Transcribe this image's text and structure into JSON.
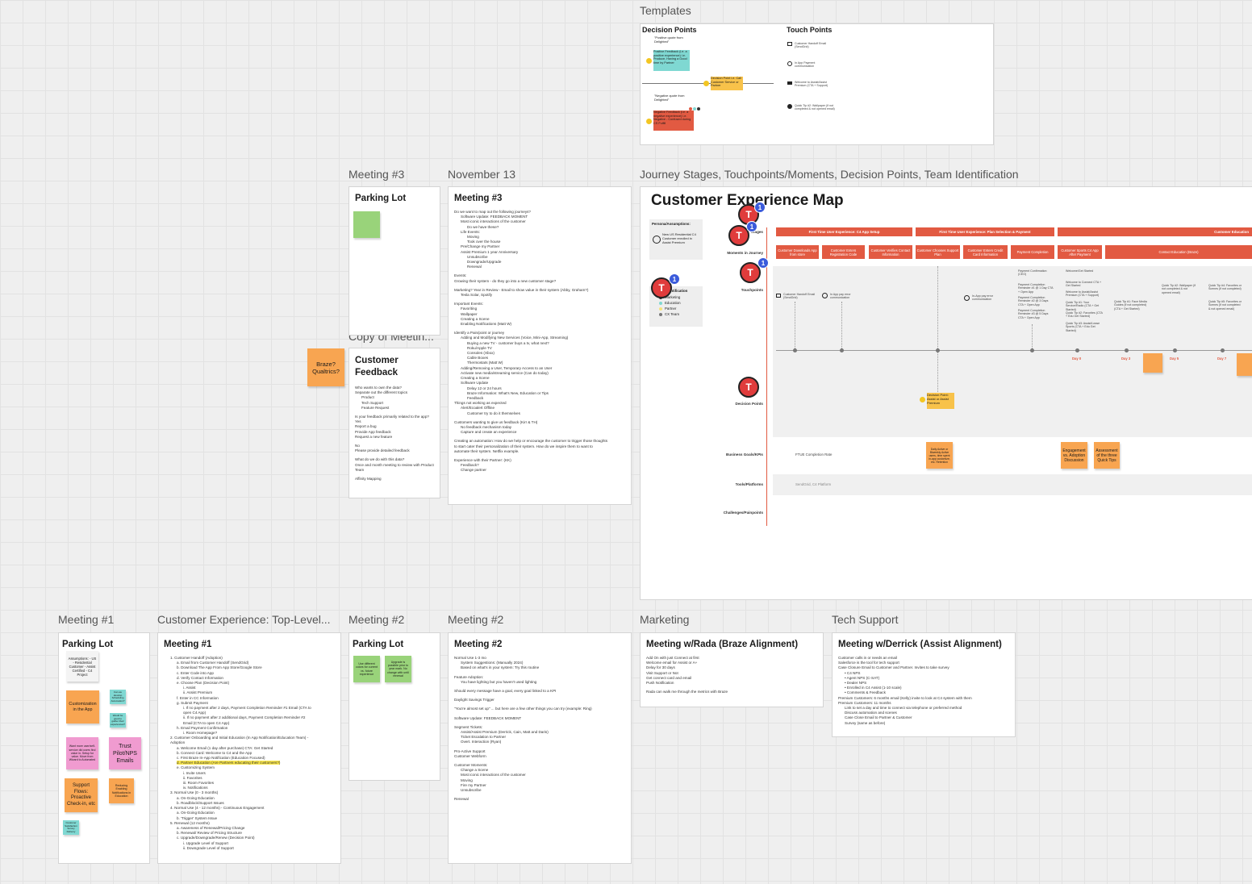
{
  "titles": {
    "templates": "Templates",
    "meeting3_parking": "Meeting #3",
    "november13": "November 13",
    "journey": "Journey Stages, Touchpoints/Moments, Decision Points, Team Identification",
    "copy_meeting": "Copy of Meetin...",
    "meeting1": "Meeting #1",
    "cx_top": "Customer Experience: Top-Level...",
    "meeting2_parking": "Meeting #2",
    "meeting2": "Meeting #2",
    "marketing": "Marketing",
    "tech_support": "Tech Support"
  },
  "templates": {
    "decision_points": "Decision Points",
    "touch_points": "Touch Points",
    "positive_quote": "\"Positive quote from Delighted\"",
    "positive_note": "Positive Feedback (i.e. a positive experience) i.e. Produce, Having a Good time by Partner",
    "decision_point": "Decision Point i.e. Call Customer Service or Partner",
    "negative_quote": "\"Negative quote from Delighted\"",
    "negative_note": "Negative Feedback (i.e. a negative experience) i.e. Negative - Confused during CS Fulfill",
    "tp1": "Customer Handoff Email (SendGrid)",
    "tp2": "In App Payment communication",
    "tp3": "Welcome to Assist/Assist Premium (CTA + Support)",
    "tp4": "Quick Tip #2: Wallpaper (if not completed & not opened email)"
  },
  "parking3": {
    "heading": "Parking Lot"
  },
  "meeting3": {
    "heading": "Meeting #3",
    "lines": [
      [
        "0",
        "Do we want to map out the following journeys?"
      ],
      [
        "1",
        "Software Update: FEEDBACK MOMENT"
      ],
      [
        "1",
        "Most iconic interactions of the customer"
      ],
      [
        "2",
        "Do we have these?"
      ],
      [
        "1",
        "Life Events:"
      ],
      [
        "2",
        "Moving"
      ],
      [
        "2",
        "Took over the house"
      ],
      [
        "1",
        "Pre/Change my Partner"
      ],
      [
        "1",
        "Assist Premium 1 year Anniversary"
      ],
      [
        "2",
        "Unsubscribe"
      ],
      [
        "2",
        "Downgrade/Upgrade"
      ],
      [
        "2",
        "Renewal"
      ],
      [
        "gap",
        ""
      ],
      [
        "0",
        "Events:"
      ],
      [
        "0",
        "Growing their system - do they go into a new customer stage?"
      ],
      [
        "gap",
        ""
      ],
      [
        "0",
        "Marketing? Year in Review - Email to show value in their system (Abby, Graham?)"
      ],
      [
        "1",
        "Tesla Solar, Spotify"
      ],
      [
        "gap",
        ""
      ],
      [
        "0",
        "Important Events:"
      ],
      [
        "1",
        "Favoriting"
      ],
      [
        "1",
        "Wallpaper"
      ],
      [
        "1",
        "Creating a Scene"
      ],
      [
        "1",
        "Enabling Notifications (Matt W)"
      ],
      [
        "gap",
        ""
      ],
      [
        "0",
        "Identify a Pain/point or journey"
      ],
      [
        "1",
        "Adding and Modifying New Services (Voice, Mini-App, Streaming)"
      ],
      [
        "2",
        "Buying a new TV - customer buys a tv, what next?"
      ],
      [
        "2",
        "Roku/Apple TV"
      ],
      [
        "2",
        "Consoles (Xbox)"
      ],
      [
        "2",
        "Cable Boxes"
      ],
      [
        "2",
        "Thermostats (Matt W)"
      ],
      [
        "1",
        "Adding/Removing a User, Temporary Access to an User"
      ],
      [
        "1",
        "Activate new media/streaming service (Can do today)"
      ],
      [
        "1",
        "Creating a Scene"
      ],
      [
        "1",
        "Software Update"
      ],
      [
        "2",
        "Delay 12 or 24 hours"
      ],
      [
        "2",
        "Braze Information: What's New, Education or Tips"
      ],
      [
        "2",
        "Feedback"
      ],
      [
        "0",
        "Things not working as expected"
      ],
      [
        "1",
        "Alert/Ecoalert Offline"
      ],
      [
        "2",
        "Customer try to do it themselves"
      ],
      [
        "gap",
        ""
      ],
      [
        "0",
        "Customers wanting to give us feedback (Kirr & TH)"
      ],
      [
        "1",
        "No feedback mechanism today"
      ],
      [
        "1",
        "Capture and create an experience"
      ],
      [
        "gap",
        ""
      ],
      [
        "0",
        "Creating an automation: How do we help or encourage the customer to trigger those thoughts"
      ],
      [
        "0",
        "to start cater their personalization of their system. How do we inspire them to want to"
      ],
      [
        "0",
        "automate their system. Netflix example."
      ],
      [
        "gap",
        ""
      ],
      [
        "0",
        "Experience with their Partner: (KK)"
      ],
      [
        "1",
        "Feedback?"
      ],
      [
        "1",
        "Change partner"
      ]
    ]
  },
  "copy_feedback": {
    "heading": "Customer Feedback",
    "lines": [
      [
        "0",
        "Who wants to own the data?"
      ],
      [
        "0",
        "Separate out the different topics"
      ],
      [
        "1",
        "Product"
      ],
      [
        "1",
        "Tech Support"
      ],
      [
        "1",
        "Feature Request"
      ],
      [
        "gap",
        ""
      ],
      [
        "0",
        "Is your feedback primarily related to the app?"
      ],
      [
        "0",
        "Yes"
      ],
      [
        "0",
        "Report a bug"
      ],
      [
        "0",
        "Provide App feedback"
      ],
      [
        "0",
        "Request a new feature"
      ],
      [
        "gap",
        ""
      ],
      [
        "0",
        "No"
      ],
      [
        "0",
        "Please provide detailed feedback"
      ],
      [
        "gap",
        ""
      ],
      [
        "0",
        "What do we do with this data?"
      ],
      [
        "0",
        "Once and month meeting to review with Product"
      ],
      [
        "0",
        "Team"
      ],
      [
        "gap",
        ""
      ],
      [
        "0",
        "Affinity Mapping"
      ]
    ]
  },
  "braze_sticky": "Braze? Qualtrics?",
  "cem": {
    "title": "Customer Experience Map",
    "persona_label": "Persona/Assumptions:",
    "persona_text": "New US Residential C4 Customer enrolled in Assist Premium",
    "team_label": "Identification",
    "team": [
      "Marketing",
      "Education",
      "Partner",
      "CX Team"
    ],
    "team_colors": [
      "#333333",
      "#7fd8d2",
      "#f5e27a",
      "#777777"
    ],
    "rows": [
      "Stages",
      "Moments in Journey",
      "Touchpoints",
      "Decision Points",
      "Business Goals/KPIs",
      "Tools/Platforms",
      "Challenges/Painpoints"
    ],
    "stages": [
      "First Time User Experience: C4 App Setup",
      "First Time User Experience: Plan Selection & Payment",
      "Customer Education"
    ],
    "moments": [
      "Customer Downloads App from store",
      "Customer Enters Registration Code",
      "Customer Verifies Contact Information",
      "Customer Chooses Support Plan",
      "Customer Enters Credit Card Information",
      "Payment Completion",
      "Customer Sports C4 App After Payment",
      "Contact Education (Braze)"
    ],
    "touch1": "Customer Handoff Email (SendGrid)",
    "touch2": "In App pay error communication",
    "touch3": "In-App pay error communication",
    "touch_payment": [
      "Payment Confirmation (CEO)",
      "Payment Completion Reminder #1 @ 1 Day CTA + Open App",
      "Payment Completion Reminder #2 @ 3 Days CTA + Open App",
      "Payment Completion Reminder #3 @ 5 Days CTA + Open App"
    ],
    "touch_edu": [
      "Welcome/Get Started",
      "Welcome to Connect CTA + Get Started",
      "Welcome to Assist/Assist Premium (CTA + Support)",
      "Quick Tip #1: Your Service/Radio (CTA + Get Started)",
      "Quick Tip #2: Favorites (CTA + Edu Get Started)",
      "Quick Tip #3: Assist/Lease Sports (CTA + Edu Get Started)"
    ],
    "touch_more": [
      "Quick Tip #1: Face Media Guides (if not completed) (CTA + Get Started)",
      "Quick Tip #2: Wallpaper (if not completed & not opened email)",
      "Quick Tip #4: Favorites or Scenes (if not completed)",
      "Quick Tip #5: Favorites or Scenes (if not completed & not opened email)"
    ],
    "days": [
      "Day 0",
      "Day 3",
      "Day 5",
      "Day 7"
    ],
    "decision_note": "Decision Point: Assist or Assist Premium",
    "kpi1": "FTUE Completion Rate",
    "kpi_sticky1": "Daily Active or Biweekly Active users, time spent in-app customize, etc. Retention",
    "kpi_sticky2": "Engagement vs. Adoption Discussion",
    "kpi_sticky3": "Assessment of the three Quick Tips",
    "tools": "SendGrid, C4 Platform",
    "avatar_letter": "T",
    "badge_count": "1"
  },
  "parking1": {
    "heading": "Parking Lot",
    "assumptions": "Assumptions: - US - Residential Customer - Assist Certified - C4 Project",
    "stickies": [
      "Customization in the App",
      "Can we develop Scheduling Automation?",
      "Would be good to gather their experiences?",
      "Want more user/self-service did users find value in. Setup for value. Move from Wizard to Automated",
      "Trust Pilot/NPS Emails",
      "Support Flows: Proactive Check-in, etc",
      "Reducing Enabling Notifications in Education",
      "Customer Satisfaction Survey Delivery"
    ]
  },
  "meeting1": {
    "heading": "Meeting #1",
    "lines": [
      [
        "1",
        "1. Customer Handoff (Adoption)"
      ],
      [
        "2",
        "a. Email from Customer Handoff (SendGrid)"
      ],
      [
        "2",
        "b. Download The App From App Store/Google Store"
      ],
      [
        "2",
        "c. Enter Code into App"
      ],
      [
        "2",
        "d. Verify Contact Information"
      ],
      [
        "2",
        "e. Choose Plan (Decision Point)"
      ],
      [
        "3",
        "i. Assist"
      ],
      [
        "3",
        "ii. Assist Premium"
      ],
      [
        "2",
        "f. Enter in CC Information"
      ],
      [
        "2",
        "g. Submit Payment"
      ],
      [
        "3",
        "i. If no payment after 2 days, Payment Completion Reminder #1 Email (CTA to"
      ],
      [
        "3",
        "   open C4 App)"
      ],
      [
        "3",
        "ii. If no payment after 2 additional days, Payment Completion Reminder #2"
      ],
      [
        "3",
        "   Email (CTA to open C4 App)"
      ],
      [
        "2",
        "h. Email Payment Confirmation"
      ],
      [
        "3",
        "i. Room Homepage?"
      ],
      [
        "1",
        "2. Customer Onboarding and Initial Education (In App Notification/Education Team) -"
      ],
      [
        "1",
        "   Adoption"
      ],
      [
        "2",
        "a. Welcome Email (1 day after purchase) CTA: Get Started"
      ],
      [
        "2",
        "b. Connect Card: Welcome to C4 and the App"
      ],
      [
        "2",
        "c. First Braze In-App Notification (Education Focused)"
      ],
      [
        "2",
        "HL|d. Partner Education (Are Partners educating their customers?)"
      ],
      [
        "2",
        "e. Customizing System"
      ],
      [
        "3",
        "i. Invite Users"
      ],
      [
        "3",
        "ii. Favorites"
      ],
      [
        "3",
        "iii. Room Favorites"
      ],
      [
        "3",
        "iv. Notifications"
      ],
      [
        "1",
        "3. Normal Use (0 - 3 months)"
      ],
      [
        "2",
        "a. On-Going Education"
      ],
      [
        "2",
        "b. Roadblock/Support Issues"
      ],
      [
        "1",
        "4. Normal Use (4 - 12 months) - Continuous Engagement"
      ],
      [
        "2",
        "a. On-Going Education"
      ],
      [
        "2",
        "b. 'Trigger' System Issue"
      ],
      [
        "1",
        "5. Renewal (12 months)"
      ],
      [
        "2",
        "a. Awareness of Renewal/Pricing Change"
      ],
      [
        "2",
        "b. Renewal/ Review of Pricing Structure"
      ],
      [
        "2",
        "c. Upgrade/Downgrade/Renew (Decision Point)"
      ],
      [
        "3",
        "i. Upgrade Level of Support"
      ],
      [
        "3",
        "ii. Downgrade Level of Support"
      ]
    ]
  },
  "parking2": {
    "heading": "Parking Lot",
    "stickies": [
      "Use different colors for current vs. future experience",
      "Upgrade is possible prior to year mark. No change with until renewal"
    ]
  },
  "meeting2": {
    "heading": "Meeting #2",
    "lines": [
      [
        "0",
        "Normal Use 1-3 mo"
      ],
      [
        "1",
        "System Suggestions: (Manually 2024)"
      ],
      [
        "1",
        "Based on what's in your system: Try this routine"
      ],
      [
        "gap",
        ""
      ],
      [
        "0",
        "Feature Adoption:"
      ],
      [
        "1",
        "You have lighting but you haven't used lighting"
      ],
      [
        "gap",
        ""
      ],
      [
        "0",
        "Should every message have a goal, every goal linked to a KPI"
      ],
      [
        "gap",
        ""
      ],
      [
        "0",
        "Daylight Savings Trigger"
      ],
      [
        "gap",
        ""
      ],
      [
        "0",
        "\"You're almost set up\" ... but here are a few other things you can try (example: Ring)"
      ],
      [
        "gap",
        ""
      ],
      [
        "0",
        "Software Update: FEEDBACK MOMENT"
      ],
      [
        "gap",
        ""
      ],
      [
        "0",
        "Segment Tickets:"
      ],
      [
        "1",
        "Assist/Assist Premium (Derrick, Cain, Matt and Daris)"
      ],
      [
        "1",
        "Ticket Escalation to Partner"
      ],
      [
        "1",
        "Overt. Interaction (Ryan)"
      ],
      [
        "gap",
        ""
      ],
      [
        "0",
        "Pro-Active Support"
      ],
      [
        "0",
        "Customer Webform"
      ],
      [
        "gap",
        ""
      ],
      [
        "0",
        "Customer Moments:"
      ],
      [
        "1",
        "Change a Scene"
      ],
      [
        "1",
        "Most iconic interactions of the customer"
      ],
      [
        "1",
        "Moving"
      ],
      [
        "1",
        "Fire my Partner"
      ],
      [
        "1",
        "Unsubscribe"
      ],
      [
        "gap",
        ""
      ],
      [
        "0",
        "Renewal"
      ]
    ]
  },
  "marketing": {
    "heading": "Meeting w/Rada (Braze Alignment)",
    "lines": [
      [
        "0",
        "Add On with just Connect at first"
      ],
      [
        "0",
        "Welcome email for Assist or A+"
      ],
      [
        "0",
        "Delay for 30 days"
      ],
      [
        "0",
        "Visit Support or Not"
      ],
      [
        "0",
        "Get connect card and email"
      ],
      [
        "0",
        "Push Notification"
      ],
      [
        "gap",
        ""
      ],
      [
        "0",
        "Rada can walk me through the metrics with Braze"
      ]
    ]
  },
  "tech": {
    "heading": "Meeting w/Derrick (Assist Alignment)",
    "lines": [
      [
        "0",
        "Customer calls in or needs an email"
      ],
      [
        "0",
        "Salesforce is the tool for tech support"
      ],
      [
        "0",
        "Case Closure Email to Customer and Partner. Invites to take survey"
      ],
      [
        "1",
        "• C4 NPS"
      ],
      [
        "1",
        "• Agent NPS (C-SAT)"
      ],
      [
        "1",
        "• Dealer NPS"
      ],
      [
        "1",
        "• Enrolled in C4 Assist (1-10 scale)"
      ],
      [
        "1",
        "• Comments & Feedback"
      ],
      [
        "0",
        "Premium Customers: 6 months email (Kelly) invite to look at C4 system with them"
      ],
      [
        "0",
        "Premium Customers: 11 months"
      ],
      [
        "1",
        "Link to set a day and time to connect via telephone or preferred method"
      ],
      [
        "1",
        "Discuss automation and scenes"
      ],
      [
        "1",
        "Case Close Email to Partner & Customer"
      ],
      [
        "1",
        "Survey (same as before)"
      ]
    ]
  }
}
